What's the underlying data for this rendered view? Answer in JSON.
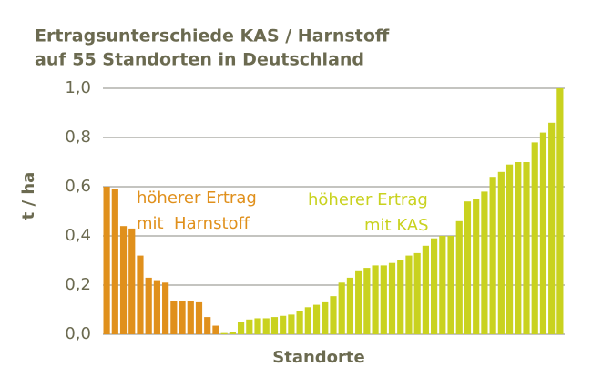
{
  "chart_data": {
    "type": "bar",
    "title": [
      "Ertragsunterschiede KAS / Harnstoff",
      "auf 55 Standorten in Deutschland"
    ],
    "y_label": "t / ha",
    "x_label": "Standorte",
    "values": [
      0.6,
      0.59,
      0.44,
      0.43,
      0.32,
      0.23,
      0.22,
      0.21,
      0.135,
      0.135,
      0.135,
      0.13,
      0.07,
      0.035,
      0.005,
      0.01,
      0.05,
      0.06,
      0.065,
      0.065,
      0.07,
      0.075,
      0.08,
      0.095,
      0.11,
      0.12,
      0.13,
      0.155,
      0.21,
      0.23,
      0.26,
      0.27,
      0.28,
      0.28,
      0.29,
      0.3,
      0.32,
      0.33,
      0.36,
      0.39,
      0.4,
      0.4,
      0.46,
      0.54,
      0.55,
      0.58,
      0.64,
      0.66,
      0.69,
      0.7,
      0.7,
      0.78,
      0.82,
      0.86,
      1.0
    ],
    "bar_colors": [
      "#e0901c",
      "#e0901c",
      "#e0901c",
      "#e0901c",
      "#e0901c",
      "#e0901c",
      "#e0901c",
      "#e0901c",
      "#e0901c",
      "#e0901c",
      "#e0901c",
      "#e0901c",
      "#e0901c",
      "#e0901c",
      "#c9d21f",
      "#c9d21f",
      "#c9d21f",
      "#c9d21f",
      "#c9d21f",
      "#c9d21f",
      "#c9d21f",
      "#c9d21f",
      "#c9d21f",
      "#c9d21f",
      "#c9d21f",
      "#c9d21f",
      "#c9d21f",
      "#c9d21f",
      "#c9d21f",
      "#c9d21f",
      "#c9d21f",
      "#c9d21f",
      "#c9d21f",
      "#c9d21f",
      "#c9d21f",
      "#c9d21f",
      "#c9d21f",
      "#c9d21f",
      "#c9d21f",
      "#c9d21f",
      "#c9d21f",
      "#c9d21f",
      "#c9d21f",
      "#c9d21f",
      "#c9d21f",
      "#c9d21f",
      "#c9d21f",
      "#c9d21f",
      "#c9d21f",
      "#c9d21f",
      "#c9d21f",
      "#c9d21f",
      "#c9d21f",
      "#c9d21f",
      "#c9d21f"
    ],
    "ylim": [
      0,
      1.0
    ],
    "yticks": [
      {
        "value": 0,
        "label": "0,0"
      },
      {
        "value": 0.2,
        "label": "0,2"
      },
      {
        "value": 0.4,
        "label": "0,4"
      },
      {
        "value": 0.6,
        "label": "0,6"
      },
      {
        "value": 0.8,
        "label": "0,8"
      },
      {
        "value": 1.0,
        "label": "1,0"
      }
    ],
    "grid": true,
    "annotations": [
      {
        "lines": [
          "höherer Ertrag",
          "mit  Harnstoff"
        ],
        "color": "#e0901c"
      },
      {
        "lines": [
          "höherer Ertrag",
          "mit KAS"
        ],
        "color": "#c9d21f"
      }
    ]
  }
}
